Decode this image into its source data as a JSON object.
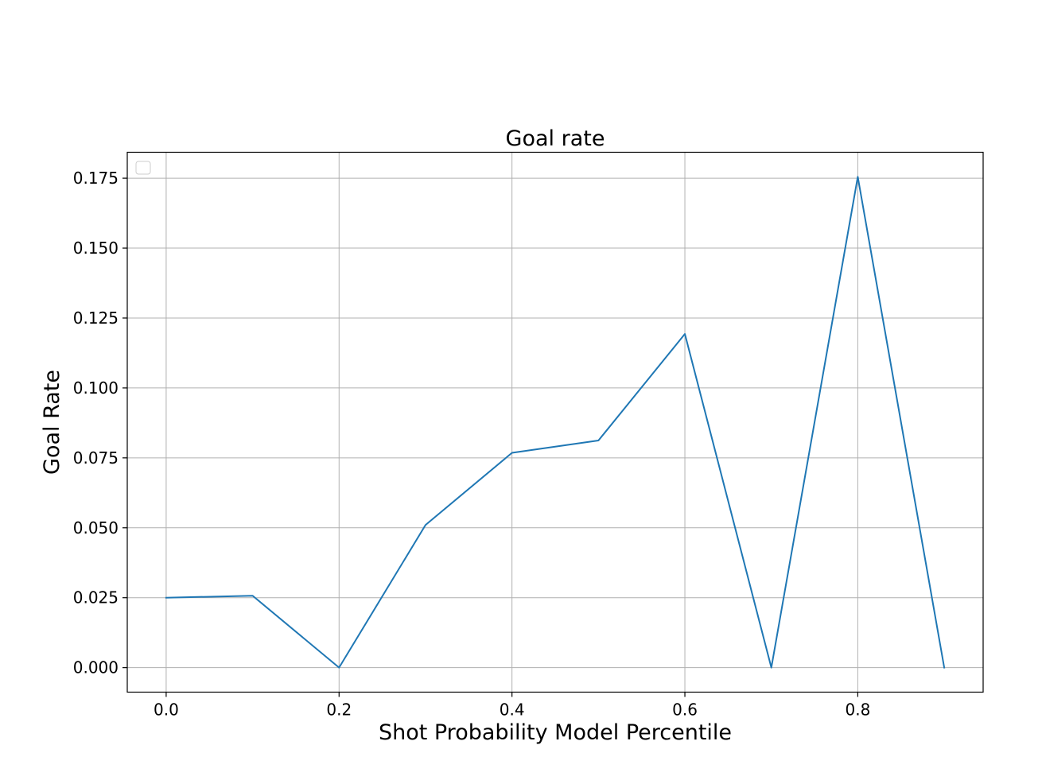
{
  "chart_data": {
    "type": "line",
    "title": "Goal rate",
    "xlabel": "Shot Probability Model Percentile",
    "ylabel": "Goal Rate",
    "x": [
      0.0,
      0.1,
      0.2,
      0.3,
      0.4,
      0.5,
      0.6,
      0.7,
      0.8,
      0.9
    ],
    "series": [
      {
        "values": [
          0.025,
          0.0257,
          0.0,
          0.051,
          0.0768,
          0.0812,
          0.1193,
          0.0,
          0.1755,
          0.0
        ],
        "color": "#1f77b4"
      }
    ],
    "xlim": [
      -0.045,
      0.945
    ],
    "ylim": [
      -0.00877,
      0.18427
    ],
    "xticks": [
      "0.0",
      "0.2",
      "0.4",
      "0.6",
      "0.8"
    ],
    "xtick_values": [
      0.0,
      0.2,
      0.4,
      0.6,
      0.8
    ],
    "yticks": [
      "0.000",
      "0.025",
      "0.050",
      "0.075",
      "0.100",
      "0.125",
      "0.150",
      "0.175"
    ],
    "ytick_values": [
      0.0,
      0.025,
      0.05,
      0.075,
      0.1,
      0.125,
      0.15,
      0.175
    ],
    "grid": true,
    "legend": {
      "placement": "top-left",
      "entries": []
    },
    "colors": {
      "line": "#1f77b4",
      "grid": "#b0b0b0",
      "axes": "#000000"
    }
  }
}
